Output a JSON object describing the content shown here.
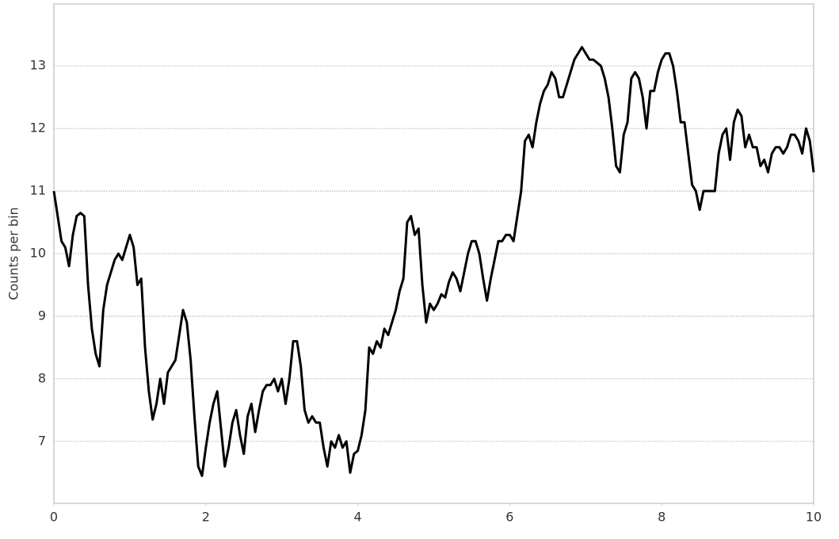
{
  "chart_data": {
    "type": "line",
    "y_label": "Counts per bin",
    "x": [
      0,
      0.05,
      0.1,
      0.15,
      0.2,
      0.25,
      0.3,
      0.35,
      0.4,
      0.45,
      0.5,
      0.55,
      0.6,
      0.65,
      0.7,
      0.75,
      0.8,
      0.85,
      0.9,
      0.95,
      1,
      1.05,
      1.1,
      1.15,
      1.2,
      1.25,
      1.3,
      1.35,
      1.4,
      1.45,
      1.5,
      1.55,
      1.6,
      1.65,
      1.7,
      1.75,
      1.8,
      1.85,
      1.9,
      1.95,
      2,
      2.05,
      2.1,
      2.15,
      2.2,
      2.25,
      2.3,
      2.35,
      2.4,
      2.45,
      2.5,
      2.55,
      2.6,
      2.65,
      2.7,
      2.75,
      2.8,
      2.85,
      2.9,
      2.95,
      3,
      3.05,
      3.1,
      3.15,
      3.2,
      3.25,
      3.3,
      3.35,
      3.4,
      3.45,
      3.5,
      3.55,
      3.6,
      3.65,
      3.7,
      3.75,
      3.8,
      3.85,
      3.9,
      3.95,
      4,
      4.05,
      4.1,
      4.15,
      4.2,
      4.25,
      4.3,
      4.35,
      4.4,
      4.45,
      4.5,
      4.55,
      4.6,
      4.65,
      4.7,
      4.75,
      4.8,
      4.85,
      4.9,
      4.95,
      5,
      5.05,
      5.1,
      5.15,
      5.2,
      5.25,
      5.3,
      5.35,
      5.4,
      5.45,
      5.5,
      5.55,
      5.6,
      5.65,
      5.7,
      5.75,
      5.8,
      5.85,
      5.9,
      5.95,
      6,
      6.05,
      6.1,
      6.15,
      6.2,
      6.25,
      6.3,
      6.35,
      6.4,
      6.45,
      6.5,
      6.55,
      6.6,
      6.65,
      6.7,
      6.75,
      6.8,
      6.85,
      6.9,
      6.95,
      7,
      7.05,
      7.1,
      7.15,
      7.2,
      7.25,
      7.3,
      7.35,
      7.4,
      7.45,
      7.5,
      7.55,
      7.6,
      7.65,
      7.7,
      7.75,
      7.8,
      7.85,
      7.9,
      7.95,
      8,
      8.05,
      8.1,
      8.15,
      8.2,
      8.25,
      8.3,
      8.35,
      8.4,
      8.45,
      8.5,
      8.55,
      8.6,
      8.65,
      8.7,
      8.75,
      8.8,
      8.85,
      8.9,
      8.95,
      9,
      9.05,
      9.1,
      9.15,
      9.2,
      9.25,
      9.3,
      9.35,
      9.4,
      9.45,
      9.5,
      9.55,
      9.6,
      9.65,
      9.7,
      9.75,
      9.8,
      9.85,
      9.9,
      9.95,
      10
    ],
    "series": [
      {
        "color": "#000000",
        "values": [
          11.0,
          10.6,
          10.2,
          10.1,
          9.8,
          10.3,
          10.6,
          10.65,
          10.6,
          9.5,
          8.8,
          8.4,
          8.2,
          9.1,
          9.5,
          9.7,
          9.9,
          10.0,
          9.9,
          10.1,
          10.3,
          10.1,
          9.5,
          9.6,
          8.5,
          7.8,
          7.35,
          7.6,
          8.0,
          7.6,
          8.1,
          8.2,
          8.3,
          8.7,
          9.1,
          8.9,
          8.3,
          7.4,
          6.6,
          6.45,
          6.9,
          7.3,
          7.6,
          7.8,
          7.2,
          6.6,
          6.9,
          7.3,
          7.5,
          7.1,
          6.8,
          7.4,
          7.6,
          7.15,
          7.5,
          7.8,
          7.9,
          7.9,
          8.0,
          7.8,
          8.0,
          7.6,
          8.0,
          8.6,
          8.6,
          8.2,
          7.5,
          7.3,
          7.4,
          7.3,
          7.3,
          6.9,
          6.6,
          7.0,
          6.9,
          7.1,
          6.9,
          7.0,
          6.5,
          6.8,
          6.85,
          7.1,
          7.5,
          8.5,
          8.4,
          8.6,
          8.5,
          8.8,
          8.7,
          8.9,
          9.1,
          9.4,
          9.6,
          10.5,
          10.6,
          10.3,
          10.4,
          9.5,
          8.9,
          9.2,
          9.1,
          9.2,
          9.35,
          9.3,
          9.55,
          9.7,
          9.6,
          9.4,
          9.7,
          10.0,
          10.2,
          10.2,
          10.0,
          9.6,
          9.25,
          9.6,
          9.9,
          10.2,
          10.2,
          10.3,
          10.3,
          10.2,
          10.6,
          11.0,
          11.8,
          11.9,
          11.7,
          12.1,
          12.4,
          12.6,
          12.7,
          12.9,
          12.8,
          12.5,
          12.5,
          12.7,
          12.9,
          13.1,
          13.2,
          13.3,
          13.2,
          13.1,
          13.1,
          13.05,
          13.0,
          12.8,
          12.5,
          12.0,
          11.4,
          11.3,
          11.9,
          12.1,
          12.8,
          12.9,
          12.8,
          12.5,
          12.0,
          12.6,
          12.6,
          12.9,
          13.1,
          13.2,
          13.2,
          13.0,
          12.6,
          12.1,
          12.1,
          11.6,
          11.1,
          11.0,
          10.7,
          11.0,
          11.0,
          11.0,
          11.0,
          11.6,
          11.9,
          12.0,
          11.5,
          12.1,
          12.3,
          12.2,
          11.7,
          11.9,
          11.7,
          11.7,
          11.4,
          11.5,
          11.3,
          11.6,
          11.7,
          11.7,
          11.6,
          11.7,
          11.9,
          11.9,
          11.8,
          11.6,
          12.0,
          11.8,
          11.3
        ]
      }
    ],
    "xlim": [
      0,
      10
    ],
    "xticks": [
      0,
      2,
      4,
      6,
      8,
      10
    ],
    "ylim": [
      6.01,
      13.99
    ],
    "yticks": [
      7,
      8,
      9,
      10,
      11,
      12,
      13
    ],
    "grid": true
  }
}
